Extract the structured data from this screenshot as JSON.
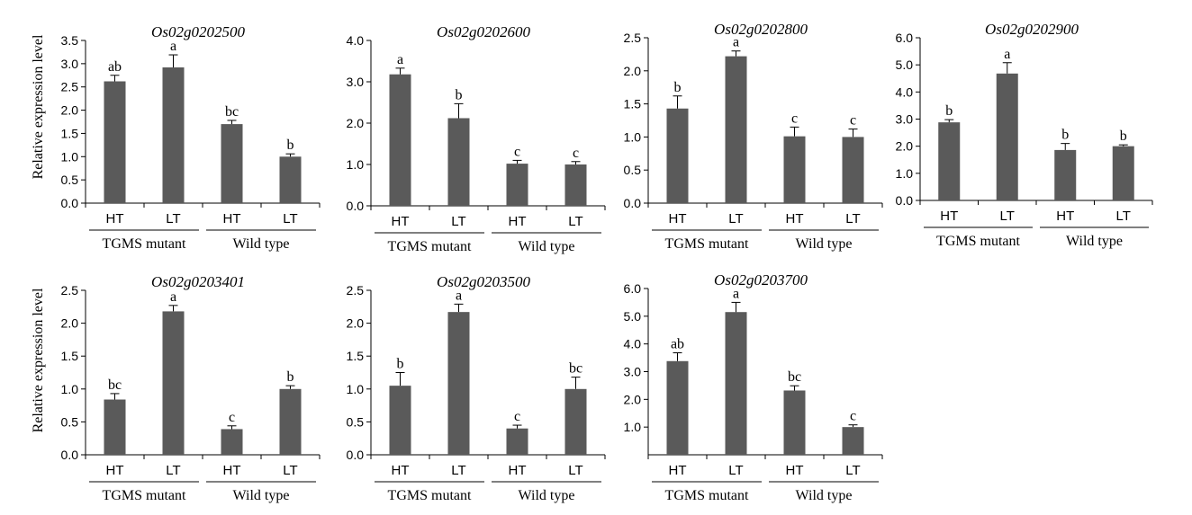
{
  "figure": {
    "y_axis_label": "Relative expression level",
    "bar_color": "#5a5a5a",
    "group_labels": [
      "TGMS mutant",
      "Wild type"
    ]
  },
  "chart_data": [
    {
      "type": "bar",
      "title": "Os02g0202500",
      "categories": [
        "HT",
        "LT",
        "HT",
        "LT"
      ],
      "groups": [
        "TGMS mutant",
        "Wild type"
      ],
      "values": [
        2.62,
        2.92,
        1.7,
        1.0
      ],
      "errors": [
        0.13,
        0.27,
        0.08,
        0.06
      ],
      "significance": [
        "ab",
        "a",
        "bc",
        "b"
      ],
      "ylim": [
        0,
        3.5
      ],
      "yticks": [
        "0.0",
        "0.5",
        "1.0",
        "1.5",
        "2.0",
        "2.5",
        "3.0",
        "3.5"
      ]
    },
    {
      "type": "bar",
      "title": "Os02g0202600",
      "categories": [
        "HT",
        "LT",
        "HT",
        "LT"
      ],
      "groups": [
        "TGMS mutant",
        "Wild type"
      ],
      "values": [
        3.18,
        2.12,
        1.02,
        1.0
      ],
      "errors": [
        0.15,
        0.35,
        0.08,
        0.07
      ],
      "significance": [
        "a",
        "b",
        "c",
        "c"
      ],
      "ylim": [
        0,
        4.0
      ],
      "yticks": [
        "0.0",
        "1.0",
        "2.0",
        "3.0",
        "4.0"
      ]
    },
    {
      "type": "bar",
      "title": "Os02g0202800",
      "categories": [
        "HT",
        "LT",
        "HT",
        "LT"
      ],
      "groups": [
        "TGMS mutant",
        "Wild type"
      ],
      "values": [
        1.43,
        2.22,
        1.01,
        1.0
      ],
      "errors": [
        0.19,
        0.08,
        0.14,
        0.12
      ],
      "significance": [
        "b",
        "a",
        "c",
        "c"
      ],
      "ylim": [
        0,
        2.5
      ],
      "yticks": [
        "0.0",
        "0.5",
        "1.0",
        "1.5",
        "2.0",
        "2.5"
      ]
    },
    {
      "type": "bar",
      "title": "Os02g0202900",
      "categories": [
        "HT",
        "LT",
        "HT",
        "LT"
      ],
      "groups": [
        "TGMS mutant",
        "Wild type"
      ],
      "values": [
        2.88,
        4.68,
        1.86,
        2.0
      ],
      "errors": [
        0.1,
        0.4,
        0.24,
        0.05
      ],
      "significance": [
        "b",
        "a",
        "b",
        "b"
      ],
      "ylim": [
        0,
        6.0
      ],
      "yticks": [
        "0.0",
        "1.0",
        "2.0",
        "3.0",
        "4.0",
        "5.0",
        "6.0"
      ]
    },
    {
      "type": "bar",
      "title": "Os02g0203401",
      "categories": [
        "HT",
        "LT",
        "HT",
        "LT"
      ],
      "groups": [
        "TGMS mutant",
        "Wild type"
      ],
      "values": [
        0.84,
        2.18,
        0.39,
        1.0
      ],
      "errors": [
        0.09,
        0.09,
        0.05,
        0.05
      ],
      "significance": [
        "bc",
        "a",
        "c",
        "b"
      ],
      "ylim": [
        0,
        2.5
      ],
      "yticks": [
        "0.0",
        "0.5",
        "1.0",
        "1.5",
        "2.0",
        "2.5"
      ]
    },
    {
      "type": "bar",
      "title": "Os02g0203500",
      "categories": [
        "HT",
        "LT",
        "HT",
        "LT"
      ],
      "groups": [
        "TGMS mutant",
        "Wild type"
      ],
      "values": [
        1.05,
        2.17,
        0.4,
        1.0
      ],
      "errors": [
        0.2,
        0.12,
        0.05,
        0.18
      ],
      "significance": [
        "b",
        "a",
        "c",
        "bc"
      ],
      "ylim": [
        0,
        2.5
      ],
      "yticks": [
        "0.0",
        "0.5",
        "1.0",
        "1.5",
        "2.0",
        "2.5"
      ]
    },
    {
      "type": "bar",
      "title": "Os02g0203700",
      "categories": [
        "HT",
        "LT",
        "HT",
        "LT"
      ],
      "groups": [
        "TGMS mutant",
        "Wild type"
      ],
      "values": [
        3.38,
        5.15,
        2.32,
        1.0
      ],
      "errors": [
        0.3,
        0.35,
        0.17,
        0.08
      ],
      "significance": [
        "ab",
        "a",
        "bc",
        "c"
      ],
      "ylim": [
        0,
        6.0
      ],
      "yticks": [
        "1.0",
        "2.0",
        "3.0",
        "4.0",
        "5.0",
        "6.0"
      ]
    }
  ]
}
